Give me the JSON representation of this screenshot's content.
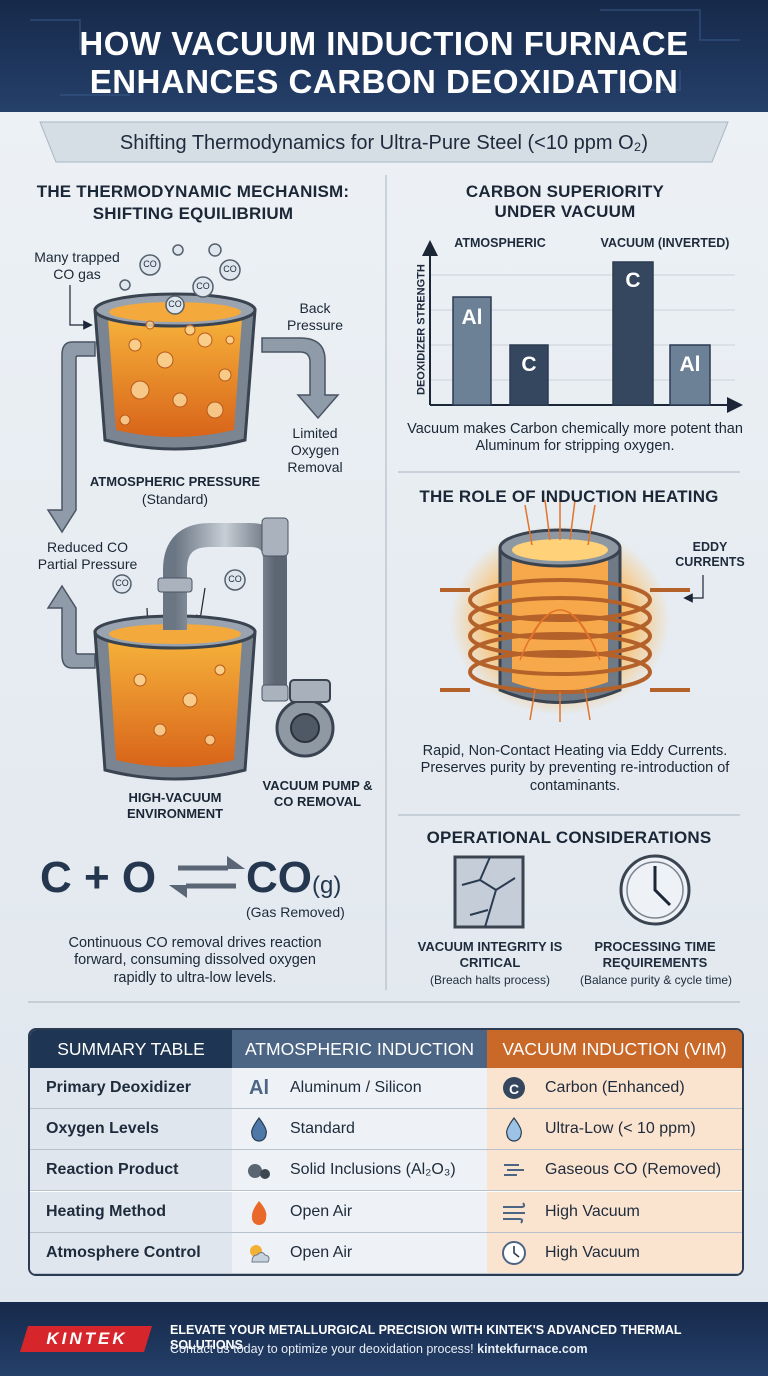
{
  "header": {
    "title": [
      "HOW VACUUM INDUCTION FURNACE",
      "ENHANCES CARBON DEOXIDATION"
    ],
    "subtitle": "Shifting Thermodynamics for Ultra-Pure Steel (<10 ppm O₂)"
  },
  "mechanism": {
    "title": [
      "THE THERMODYNAMIC MECHANISM:",
      "SHIFTING EQUILIBRIUM"
    ],
    "bubble_label": "CO",
    "trapped": "Many trapped CO gas",
    "back_pressure": "Back Pressure",
    "limited": "Limited Oxygen Removal",
    "atm_label": "ATMOSPHERIC PRESSURE",
    "atm_sub": "(Standard)",
    "reduced": "Reduced CO Partial Pressure",
    "vacuum_env": "HIGH-VACUUM ENVIRONMENT",
    "pump": "VACUUM PUMP & CO REMOVAL",
    "equation": {
      "left": "C + O",
      "right": "CO",
      "state": "(g)",
      "note": "(Gas Removed)"
    },
    "caption": "Continuous CO removal drives reaction forward, consuming dissolved oxygen rapidly to ultra-low levels."
  },
  "carbon": {
    "title": "CARBON SUPERIORITY UNDER VACUUM",
    "y_label": "DEOXIDIZER STRENGTH",
    "groups": [
      "ATMOSPHERIC",
      "VACUUM (INVERTED)"
    ],
    "bar_labels": [
      [
        "Al",
        "C"
      ],
      [
        "C",
        "Al"
      ]
    ],
    "caption": "Vacuum makes Carbon chemically more potent than Aluminum for stripping oxygen."
  },
  "induction": {
    "title": "THE ROLE OF INDUCTION HEATING",
    "eddy": "EDDY CURRENTS",
    "caption": "Rapid, Non-Contact Heating via Eddy Currents. Preserves purity by preventing re-introduction of contaminants."
  },
  "operational": {
    "title": "OPERATIONAL CONSIDERATIONS",
    "items": [
      {
        "label": "VACUUM INTEGRITY IS CRITICAL",
        "note": "(Breach halts process)"
      },
      {
        "label": "PROCESSING TIME REQUIREMENTS",
        "note": "(Balance purity & cycle time)"
      }
    ]
  },
  "table": {
    "header": [
      "SUMMARY TABLE",
      "ATMOSPHERIC INDUCTION",
      "VACUUM INDUCTION (VIM)"
    ],
    "icon_texts": [
      "Al",
      "C"
    ],
    "rows": [
      [
        "Primary Deoxidizer",
        "Aluminum / Silicon",
        "Carbon (Enhanced)"
      ],
      [
        "Oxygen Levels",
        "Standard",
        "Ultra-Low (< 10 ppm)"
      ],
      [
        "Reaction Product",
        "Solid Inclusions (Al₂O₃)",
        "Gaseous CO (Removed)"
      ],
      [
        "Heating Method",
        "Open Air",
        "High Vacuum"
      ],
      [
        "Atmosphere Control",
        "Open Air",
        "High Vacuum"
      ]
    ]
  },
  "footer": {
    "logo": "KINTEK",
    "headline": "ELEVATE YOUR METALLURGICAL PRECISION WITH KINTEK'S ADVANCED THERMAL SOLUTIONS.",
    "contact": "Contact us today to optimize your deoxidation process!",
    "url": "kintekfurnace.com"
  }
}
